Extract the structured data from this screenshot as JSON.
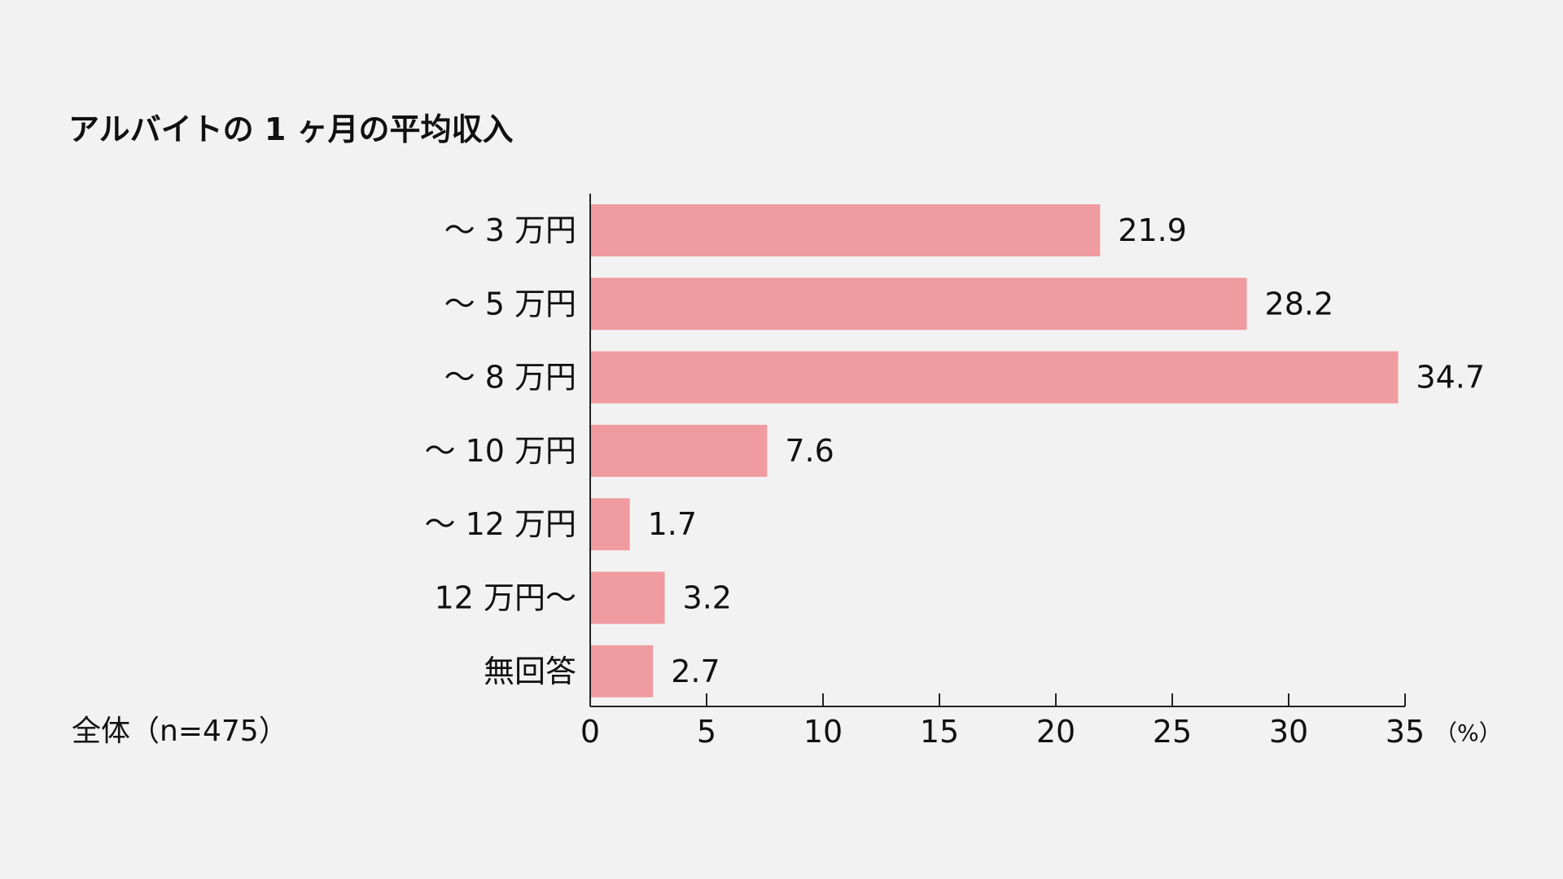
{
  "chart_data": {
    "type": "bar",
    "orientation": "horizontal",
    "title": "アルバイトの 1 ヶ月の平均収入",
    "sample_note": "全体（n=475）",
    "x_unit": "（%）",
    "categories": [
      "〜 3 万円",
      "〜 5 万円",
      "〜 8 万円",
      "〜 10 万円",
      "〜 12 万円",
      "12 万円〜",
      "無回答"
    ],
    "values": [
      21.9,
      28.2,
      34.7,
      7.6,
      1.7,
      3.2,
      2.7
    ],
    "value_labels": [
      "21.9",
      "28.2",
      "34.7",
      "7.6",
      "1.7",
      "3.2",
      "2.7"
    ],
    "xlim": [
      0,
      35
    ],
    "ticks": [
      0,
      5,
      10,
      15,
      20,
      25,
      30,
      35
    ],
    "tick_labels": [
      "0",
      "5",
      "10",
      "15",
      "20",
      "25",
      "30",
      "35"
    ],
    "grid": false,
    "bar_color": "#f09b9f",
    "axis_color": "#222222"
  }
}
